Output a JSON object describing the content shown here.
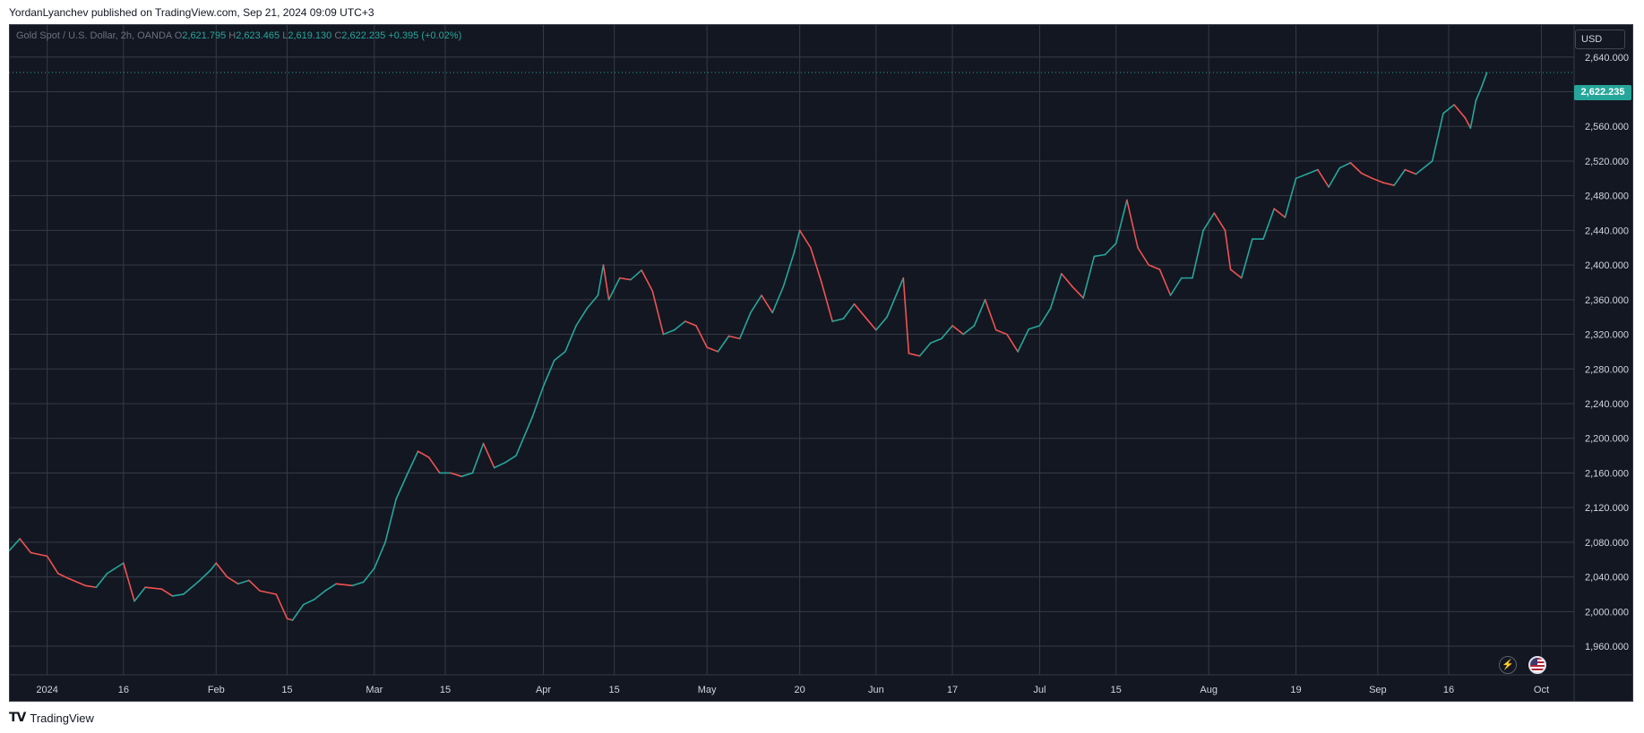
{
  "header": {
    "published": "YordanLyanchev published on TradingView.com, Sep 21, 2024 09:09 UTC+3"
  },
  "legend": {
    "symbol": "Gold Spot / U.S. Dollar, 2h, OANDA",
    "open_label": "O",
    "open": "2,621.795",
    "high_label": "H",
    "high": "2,623.465",
    "low_label": "L",
    "low": "2,619.130",
    "close_label": "C",
    "close": "2,622.235",
    "change": "+0.395 (+0.02%)"
  },
  "currency_button": "USD",
  "last_price_label": "2,622.235",
  "footer": {
    "brand": "TradingView",
    "logo": "TV"
  },
  "icons": {
    "flash": "flash-icon",
    "flag": "us-flag-icon"
  },
  "colors": {
    "background": "#131722",
    "grid": "#363a45",
    "up": "#26a69a",
    "down": "#ef5350",
    "axis_text": "#d1d4dc"
  },
  "chart_data": {
    "type": "line",
    "title": "Gold Spot / U.S. Dollar, 2h, OANDA",
    "xlabel": "",
    "ylabel": "",
    "x_range": [
      "2023-12-25",
      "2024-10-07"
    ],
    "ylim": [
      1927,
      2678
    ],
    "y_ticks": [
      1960,
      2000,
      2040,
      2080,
      2120,
      2160,
      2200,
      2240,
      2280,
      2320,
      2360,
      2400,
      2440,
      2480,
      2520,
      2560,
      2600,
      2640
    ],
    "y_tick_labels": [
      "1,960.000",
      "2,000.000",
      "2,040.000",
      "2,080.000",
      "2,120.000",
      "2,160.000",
      "2,200.000",
      "2,240.000",
      "2,280.000",
      "2,320.000",
      "2,360.000",
      "2,400.000",
      "2,440.000",
      "2,480.000",
      "2,520.000",
      "2,560.000",
      "2,600.000",
      "2,640.000"
    ],
    "x_ticks": [
      {
        "date": "2024-01-01",
        "label": "2024"
      },
      {
        "date": "2024-01-15",
        "label": "16"
      },
      {
        "date": "2024-02-01",
        "label": "Feb"
      },
      {
        "date": "2024-02-14",
        "label": "15"
      },
      {
        "date": "2024-03-01",
        "label": "Mar"
      },
      {
        "date": "2024-03-14",
        "label": "15"
      },
      {
        "date": "2024-04-01",
        "label": "Apr"
      },
      {
        "date": "2024-04-14",
        "label": "15"
      },
      {
        "date": "2024-05-01",
        "label": "May"
      },
      {
        "date": "2024-05-18",
        "label": "20"
      },
      {
        "date": "2024-06-01",
        "label": "Jun"
      },
      {
        "date": "2024-06-15",
        "label": "17"
      },
      {
        "date": "2024-07-01",
        "label": "Jul"
      },
      {
        "date": "2024-07-15",
        "label": "15"
      },
      {
        "date": "2024-08-01",
        "label": "Aug"
      },
      {
        "date": "2024-08-17",
        "label": "19"
      },
      {
        "date": "2024-09-01",
        "label": "Sep"
      },
      {
        "date": "2024-09-14",
        "label": "16"
      },
      {
        "date": "2024-10-01",
        "label": "Oct"
      }
    ],
    "last_price": 2622.235,
    "series": [
      {
        "points": [
          [
            "2023-12-25",
            2070
          ],
          [
            "2023-12-27",
            2084
          ],
          [
            "2023-12-29",
            2068
          ],
          [
            "2024-01-01",
            2064
          ],
          [
            "2024-01-03",
            2044
          ],
          [
            "2024-01-05",
            2038
          ],
          [
            "2024-01-08",
            2030
          ],
          [
            "2024-01-10",
            2028
          ],
          [
            "2024-01-12",
            2044
          ],
          [
            "2024-01-15",
            2056
          ],
          [
            "2024-01-17",
            2012
          ],
          [
            "2024-01-19",
            2028
          ],
          [
            "2024-01-22",
            2026
          ],
          [
            "2024-01-24",
            2018
          ],
          [
            "2024-01-26",
            2020
          ],
          [
            "2024-01-29",
            2036
          ],
          [
            "2024-01-31",
            2048
          ],
          [
            "2024-02-01",
            2056
          ],
          [
            "2024-02-03",
            2040
          ],
          [
            "2024-02-05",
            2032
          ],
          [
            "2024-02-07",
            2036
          ],
          [
            "2024-02-09",
            2024
          ],
          [
            "2024-02-12",
            2020
          ],
          [
            "2024-02-14",
            1992
          ],
          [
            "2024-02-15",
            1990
          ],
          [
            "2024-02-17",
            2008
          ],
          [
            "2024-02-19",
            2014
          ],
          [
            "2024-02-21",
            2024
          ],
          [
            "2024-02-23",
            2032
          ],
          [
            "2024-02-26",
            2030
          ],
          [
            "2024-02-28",
            2034
          ],
          [
            "2024-03-01",
            2050
          ],
          [
            "2024-03-03",
            2080
          ],
          [
            "2024-03-05",
            2130
          ],
          [
            "2024-03-07",
            2158
          ],
          [
            "2024-03-09",
            2185
          ],
          [
            "2024-03-11",
            2178
          ],
          [
            "2024-03-13",
            2160
          ],
          [
            "2024-03-15",
            2160
          ],
          [
            "2024-03-17",
            2156
          ],
          [
            "2024-03-19",
            2160
          ],
          [
            "2024-03-21",
            2194
          ],
          [
            "2024-03-23",
            2166
          ],
          [
            "2024-03-25",
            2172
          ],
          [
            "2024-03-27",
            2180
          ],
          [
            "2024-03-30",
            2225
          ],
          [
            "2024-04-01",
            2260
          ],
          [
            "2024-04-03",
            2290
          ],
          [
            "2024-04-05",
            2300
          ],
          [
            "2024-04-07",
            2330
          ],
          [
            "2024-04-09",
            2350
          ],
          [
            "2024-04-11",
            2365
          ],
          [
            "2024-04-12",
            2400
          ],
          [
            "2024-04-13",
            2360
          ],
          [
            "2024-04-15",
            2385
          ],
          [
            "2024-04-17",
            2383
          ],
          [
            "2024-04-19",
            2394
          ],
          [
            "2024-04-21",
            2370
          ],
          [
            "2024-04-23",
            2320
          ],
          [
            "2024-04-25",
            2325
          ],
          [
            "2024-04-27",
            2335
          ],
          [
            "2024-04-29",
            2330
          ],
          [
            "2024-05-01",
            2305
          ],
          [
            "2024-05-03",
            2300
          ],
          [
            "2024-05-05",
            2318
          ],
          [
            "2024-05-07",
            2315
          ],
          [
            "2024-05-09",
            2345
          ],
          [
            "2024-05-11",
            2365
          ],
          [
            "2024-05-13",
            2345
          ],
          [
            "2024-05-15",
            2375
          ],
          [
            "2024-05-17",
            2415
          ],
          [
            "2024-05-18",
            2440
          ],
          [
            "2024-05-20",
            2420
          ],
          [
            "2024-05-22",
            2380
          ],
          [
            "2024-05-24",
            2335
          ],
          [
            "2024-05-26",
            2338
          ],
          [
            "2024-05-28",
            2355
          ],
          [
            "2024-05-30",
            2340
          ],
          [
            "2024-06-01",
            2325
          ],
          [
            "2024-06-03",
            2340
          ],
          [
            "2024-06-05",
            2370
          ],
          [
            "2024-06-06",
            2385
          ],
          [
            "2024-06-07",
            2298
          ],
          [
            "2024-06-09",
            2295
          ],
          [
            "2024-06-11",
            2310
          ],
          [
            "2024-06-13",
            2315
          ],
          [
            "2024-06-15",
            2330
          ],
          [
            "2024-06-17",
            2320
          ],
          [
            "2024-06-19",
            2330
          ],
          [
            "2024-06-21",
            2360
          ],
          [
            "2024-06-23",
            2325
          ],
          [
            "2024-06-25",
            2320
          ],
          [
            "2024-06-27",
            2300
          ],
          [
            "2024-06-29",
            2326
          ],
          [
            "2024-07-01",
            2330
          ],
          [
            "2024-07-03",
            2350
          ],
          [
            "2024-07-05",
            2390
          ],
          [
            "2024-07-07",
            2375
          ],
          [
            "2024-07-09",
            2362
          ],
          [
            "2024-07-11",
            2410
          ],
          [
            "2024-07-13",
            2412
          ],
          [
            "2024-07-15",
            2425
          ],
          [
            "2024-07-17",
            2475
          ],
          [
            "2024-07-19",
            2420
          ],
          [
            "2024-07-21",
            2400
          ],
          [
            "2024-07-23",
            2395
          ],
          [
            "2024-07-25",
            2365
          ],
          [
            "2024-07-27",
            2385
          ],
          [
            "2024-07-29",
            2385
          ],
          [
            "2024-07-31",
            2440
          ],
          [
            "2024-08-02",
            2460
          ],
          [
            "2024-08-04",
            2440
          ],
          [
            "2024-08-05",
            2395
          ],
          [
            "2024-08-07",
            2385
          ],
          [
            "2024-08-09",
            2430
          ],
          [
            "2024-08-11",
            2430
          ],
          [
            "2024-08-13",
            2465
          ],
          [
            "2024-08-15",
            2455
          ],
          [
            "2024-08-17",
            2500
          ],
          [
            "2024-08-19",
            2505
          ],
          [
            "2024-08-21",
            2510
          ],
          [
            "2024-08-23",
            2490
          ],
          [
            "2024-08-25",
            2512
          ],
          [
            "2024-08-27",
            2518
          ],
          [
            "2024-08-29",
            2506
          ],
          [
            "2024-08-31",
            2500
          ],
          [
            "2024-09-02",
            2495
          ],
          [
            "2024-09-04",
            2492
          ],
          [
            "2024-09-06",
            2510
          ],
          [
            "2024-09-08",
            2505
          ],
          [
            "2024-09-10",
            2515
          ],
          [
            "2024-09-11",
            2520
          ],
          [
            "2024-09-13",
            2575
          ],
          [
            "2024-09-15",
            2585
          ],
          [
            "2024-09-17",
            2570
          ],
          [
            "2024-09-18",
            2558
          ],
          [
            "2024-09-19",
            2590
          ],
          [
            "2024-09-20",
            2605
          ],
          [
            "2024-09-21",
            2622
          ]
        ]
      }
    ]
  }
}
